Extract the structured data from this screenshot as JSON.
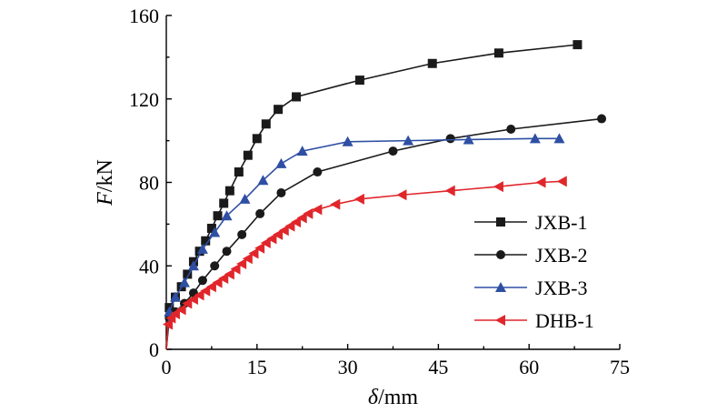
{
  "chart_data": {
    "type": "line",
    "title": "",
    "xlabel": {
      "var": "δ",
      "unit": "/mm"
    },
    "ylabel": {
      "var": "F",
      "unit": "/kN"
    },
    "xlim": [
      0,
      75
    ],
    "ylim": [
      0,
      160
    ],
    "xticks": [
      0,
      15,
      30,
      45,
      60,
      75
    ],
    "yticks": [
      0,
      40,
      80,
      120,
      160
    ],
    "grid": false,
    "legend_position": "right",
    "series": [
      {
        "name": "JXB-1",
        "color": "#1a1a1a",
        "marker": "square",
        "x": [
          0,
          0.5,
          1.5,
          2.5,
          3.5,
          4.5,
          5.5,
          6.5,
          7.5,
          8.5,
          9.5,
          10.5,
          12,
          13.5,
          15,
          16.5,
          18.5,
          21.5,
          32,
          44,
          55,
          68
        ],
        "y": [
          0,
          20,
          25,
          30,
          36,
          42,
          47,
          52,
          58,
          64,
          70,
          76,
          85,
          93,
          101,
          108,
          115,
          121,
          129,
          137,
          142,
          146
        ]
      },
      {
        "name": "JXB-2",
        "color": "#1a1a1a",
        "marker": "circle",
        "x": [
          0,
          0.5,
          1.5,
          3,
          4.5,
          6,
          8,
          10,
          12.5,
          15.5,
          19,
          25,
          37.5,
          47,
          57,
          72
        ],
        "y": [
          0,
          15,
          18,
          22,
          27,
          33,
          40,
          47,
          55,
          65,
          75,
          85,
          95,
          101,
          105.5,
          110.5
        ]
      },
      {
        "name": "JXB-3",
        "color": "#2e4fa3",
        "marker": "triangle-up",
        "x": [
          0,
          0.5,
          1.5,
          3,
          4.5,
          6,
          8,
          10,
          13,
          16,
          19,
          22.5,
          30,
          40,
          50,
          61,
          65
        ],
        "y": [
          0,
          18,
          25,
          32,
          40,
          48,
          56,
          64,
          72,
          81,
          89,
          95,
          99.5,
          100,
          100.5,
          101,
          101
        ]
      },
      {
        "name": "DHB-1",
        "color": "#e0262b",
        "marker": "triangle-left",
        "x": [
          0,
          0.3,
          0.8,
          1.5,
          2.5,
          3.5,
          4.5,
          5.5,
          6.5,
          7.5,
          8.5,
          9.5,
          10.5,
          11.5,
          12.5,
          13.5,
          14.5,
          15.5,
          16.5,
          17.5,
          18.5,
          19.5,
          20.5,
          21.5,
          22.5,
          23.5,
          25,
          28,
          32,
          39,
          47,
          55,
          62,
          65.5
        ],
        "y": [
          0,
          12,
          15,
          17,
          19,
          22,
          24,
          26,
          28,
          30,
          32,
          34,
          36,
          38.5,
          41,
          43.5,
          46,
          48.5,
          51,
          53,
          55,
          57,
          59,
          61,
          63,
          65,
          67,
          69.5,
          72,
          74,
          76,
          78,
          80,
          80.5
        ]
      }
    ]
  }
}
